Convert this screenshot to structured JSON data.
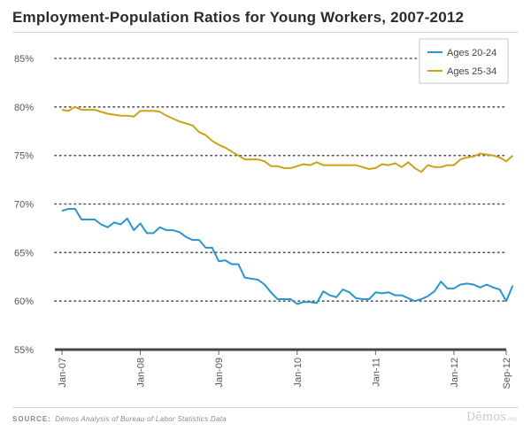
{
  "title": "Employment-Population Ratios for Young Workers, 2007-2012",
  "source_label": "SOURCE:",
  "source_text": "Dēmos Analysis of Bureau of Labor Statistics Data",
  "brand": "Dēmos",
  "brand_suffix": ".org",
  "colors": {
    "series_20_24": "#2b95d1",
    "series_25_34": "#c9a418",
    "grid": "#555555",
    "baseline": "#444444"
  },
  "chart_data": {
    "type": "line",
    "title": "Employment-Population Ratios for Young Workers, 2007-2012",
    "xlabel": "",
    "ylabel": "",
    "ylim": [
      55,
      85
    ],
    "yticks": [
      55,
      60,
      65,
      70,
      75,
      80,
      85
    ],
    "ytick_labels": [
      "55%",
      "60%",
      "65%",
      "70%",
      "75%",
      "80%",
      "85%"
    ],
    "x_range": [
      "2007-01",
      "2012-09"
    ],
    "x_tick_labels": [
      "Jan-07",
      "Jan-08",
      "Jan-09",
      "Jan-10",
      "Jan-11",
      "Jan-12",
      "Sep-12"
    ],
    "x_tick_months": [
      "2007-01",
      "2008-01",
      "2009-01",
      "2010-01",
      "2011-01",
      "2012-01",
      "2012-09"
    ],
    "grid": "horizontal dotted",
    "legend_position": "top-right",
    "series": [
      {
        "name": "Ages 20-24",
        "values": [
          69.3,
          69.5,
          69.5,
          68.4,
          68.4,
          68.4,
          67.9,
          67.6,
          68.1,
          67.9,
          68.5,
          67.3,
          68.0,
          67.0,
          67.0,
          67.6,
          67.3,
          67.3,
          67.1,
          66.6,
          66.3,
          66.3,
          65.5,
          65.5,
          64.1,
          64.2,
          63.8,
          63.8,
          62.4,
          62.3,
          62.2,
          61.7,
          60.9,
          60.2,
          60.2,
          60.2,
          59.7,
          59.9,
          59.9,
          59.8,
          61.0,
          60.6,
          60.4,
          61.2,
          60.9,
          60.3,
          60.2,
          60.2,
          60.9,
          60.8,
          60.9,
          60.6,
          60.6,
          60.3,
          60.0,
          60.2,
          60.5,
          61.0,
          62.0,
          61.3,
          61.3,
          61.7,
          61.8,
          61.7,
          61.4,
          61.7,
          61.4,
          61.2,
          60.0,
          61.6
        ]
      },
      {
        "name": "Ages 25-34",
        "values": [
          79.7,
          79.6,
          80.0,
          79.7,
          79.7,
          79.7,
          79.5,
          79.3,
          79.2,
          79.1,
          79.1,
          79.0,
          79.6,
          79.6,
          79.6,
          79.5,
          79.1,
          78.8,
          78.5,
          78.3,
          78.1,
          77.4,
          77.1,
          76.5,
          76.1,
          75.8,
          75.4,
          75.0,
          74.6,
          74.6,
          74.6,
          74.4,
          73.9,
          73.9,
          73.7,
          73.7,
          73.9,
          74.1,
          74.0,
          74.3,
          74.0,
          74.0,
          74.0,
          74.0,
          74.0,
          74.0,
          73.8,
          73.6,
          73.7,
          74.1,
          74.0,
          74.2,
          73.8,
          74.3,
          73.7,
          73.3,
          74.0,
          73.8,
          73.8,
          74.0,
          74.0,
          74.6,
          74.8,
          74.9,
          75.2,
          75.1,
          75.0,
          74.8,
          74.4,
          75.0
        ]
      }
    ]
  }
}
